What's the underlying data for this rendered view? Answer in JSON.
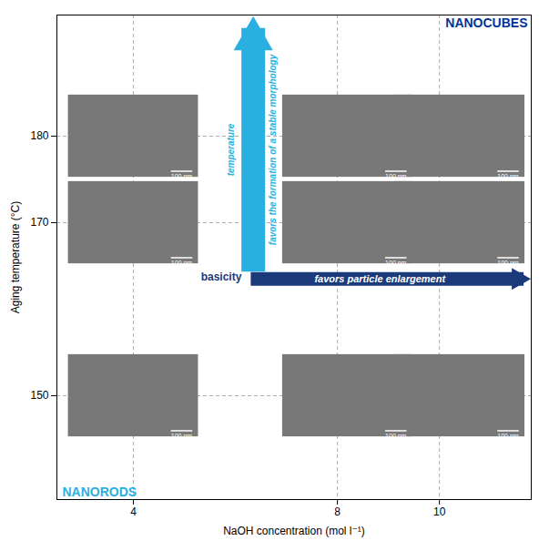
{
  "chart_data": {
    "type": "rect",
    "xlabel": "NaOH concentration (mol l⁻¹)",
    "ylabel": "Aging temperature (°C)",
    "xlim": [
      2.5,
      11.8
    ],
    "ylim": [
      138,
      194
    ],
    "xticks": [
      4,
      8,
      10
    ],
    "yticks": [
      150,
      170,
      180
    ],
    "grid": true,
    "x": [
      4.0,
      8.2,
      10.4,
      4.0,
      8.2,
      10.4,
      4.0,
      8.2,
      10.4
    ],
    "y": [
      180,
      180,
      180,
      170,
      170,
      170,
      150,
      150,
      150
    ],
    "width": 2.55,
    "height": 9.5,
    "color": "#787878",
    "image_label": "100 nm",
    "arrows": [
      {
        "label": "favors particle enlargement",
        "color": "#1a3a7a",
        "x": [
          6.3,
          11.65
        ],
        "y": [
          163.5,
          163.5
        ]
      },
      {
        "label": "favors the formation of a stable morphology",
        "color": "#29b0e0",
        "x": [
          6.35,
          6.35
        ],
        "y": [
          164.35,
          192.5
        ]
      }
    ],
    "annotations": [
      {
        "text": "basicity",
        "color": "#1a3a7a"
      },
      {
        "text": "temperature",
        "color": "#29b0e0"
      },
      {
        "text": "NANOCUBES",
        "color": "#003399"
      },
      {
        "text": "NANORODS",
        "color": "#29b0e0"
      }
    ]
  }
}
